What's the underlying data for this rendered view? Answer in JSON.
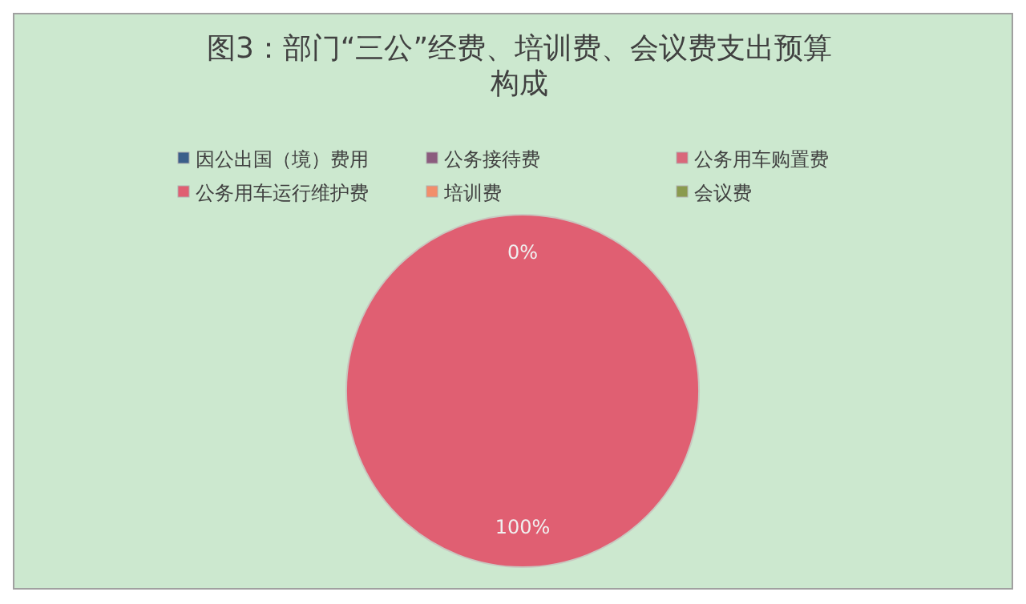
{
  "chart_data": {
    "type": "pie",
    "title": "图3：部门“三公”经费、培训费、会议费支出预算构成",
    "categories": [
      "因公出国（境）费用",
      "公务接待费",
      "公务用车购置费",
      "公务用车运行维护费",
      "培训费",
      "会议费"
    ],
    "values": [
      0,
      0,
      0,
      100,
      0,
      0
    ],
    "colors": [
      "#3b5f8a",
      "#8b5c7e",
      "#d9677a",
      "#e05f72",
      "#f28e6b",
      "#8a9a4e"
    ],
    "value_labels": [
      null,
      null,
      null,
      "100%",
      null,
      "0%"
    ],
    "legend": "top"
  }
}
